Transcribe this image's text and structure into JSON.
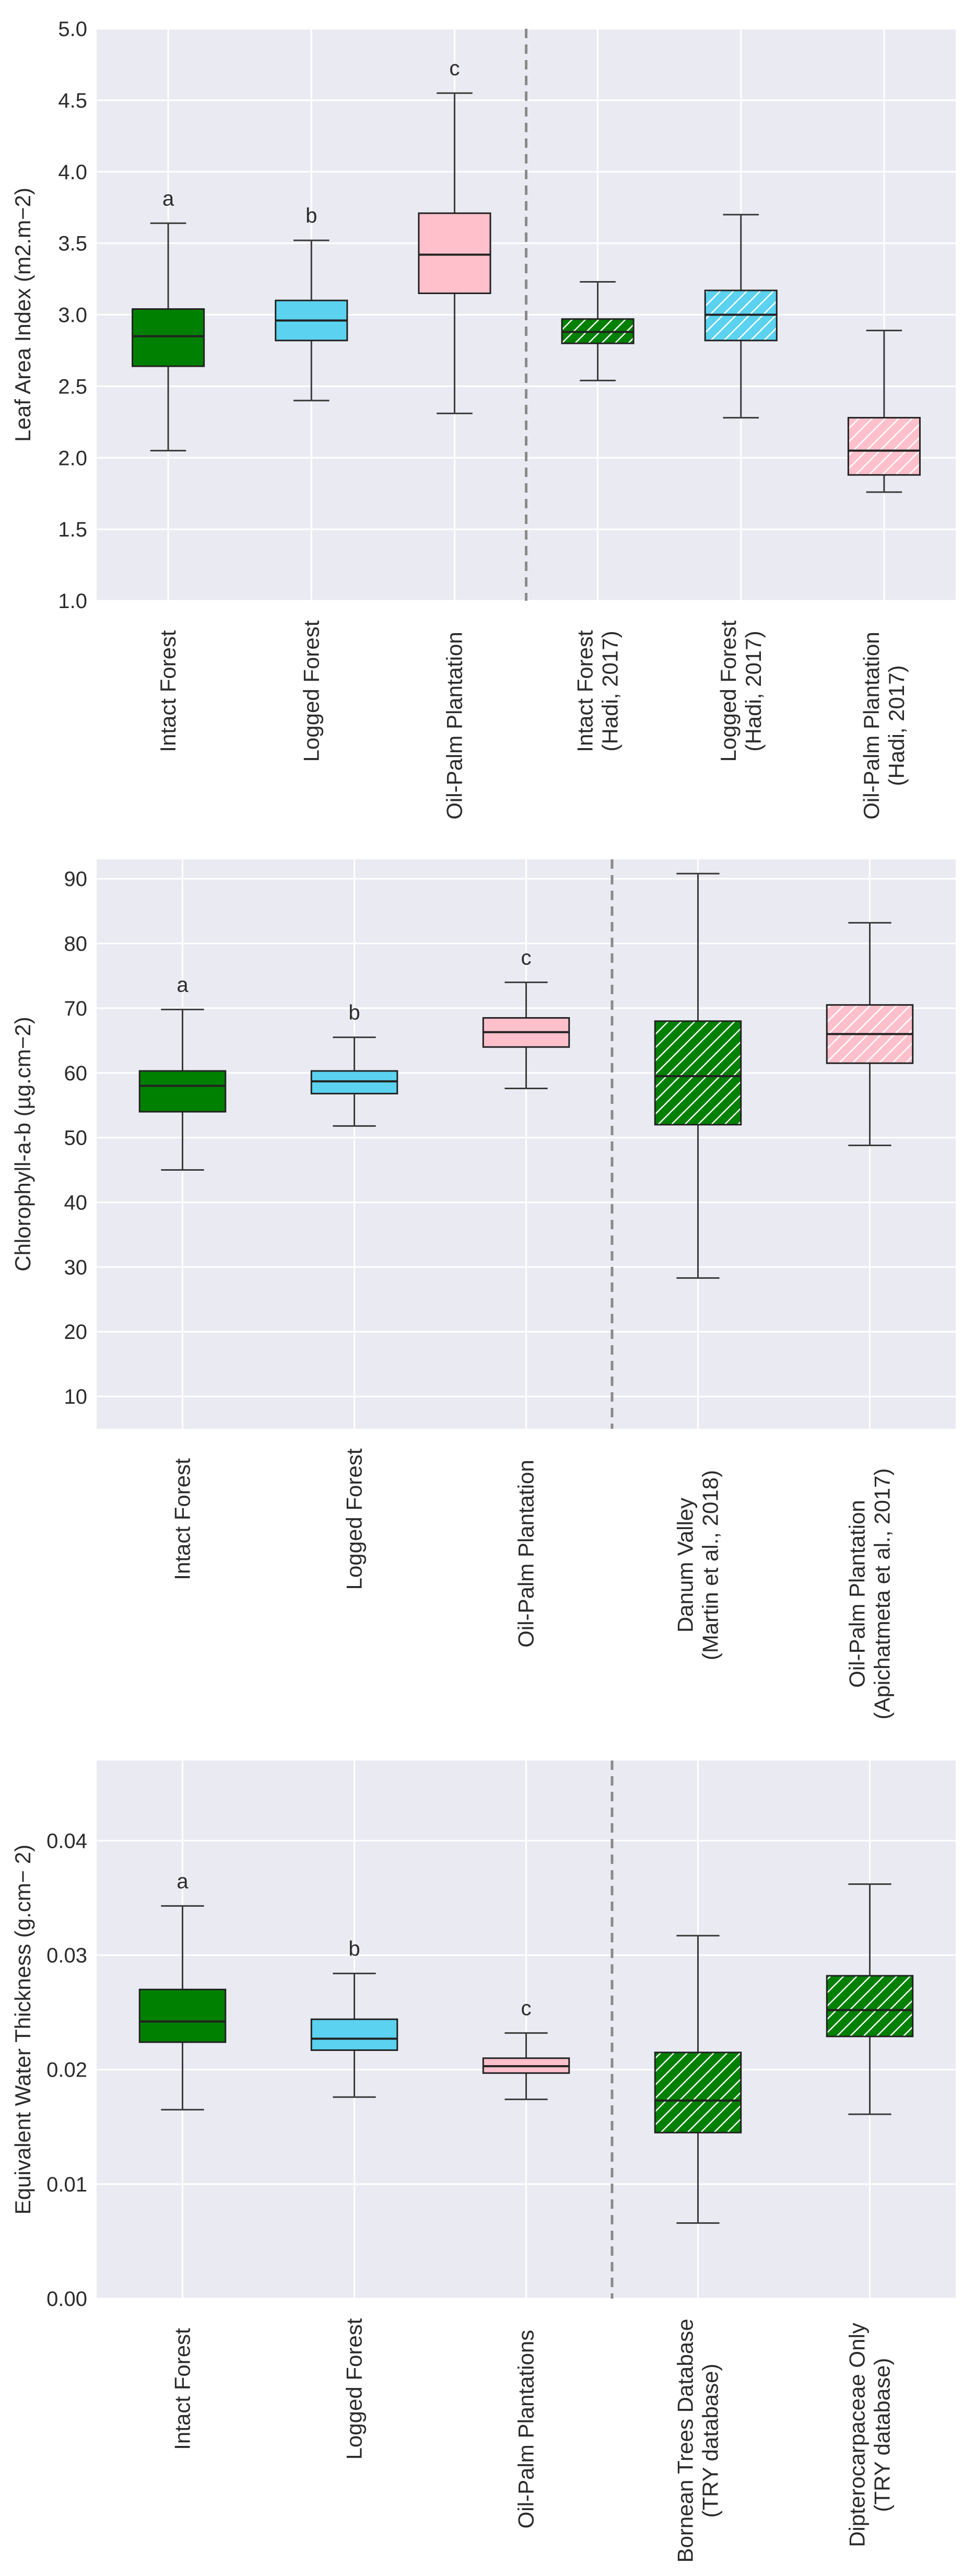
{
  "colors": {
    "panel_bg": "#eaeaf2",
    "grid": "#ffffff",
    "whisker": "#3a3a3a",
    "divider": "#8a8a8a",
    "intact": "#008000",
    "logged": "#5bd2f0",
    "oilpalm": "#ffc0cb"
  },
  "chart_data": [
    {
      "type": "box",
      "ylabel": "Leaf Area Index (m2.m−2)",
      "ylim": [
        1.0,
        5.0
      ],
      "yticks": [
        1.0,
        1.5,
        2.0,
        2.5,
        3.0,
        3.5,
        4.0,
        4.5,
        5.0
      ],
      "tick_decimals": 1,
      "divider_after": 3,
      "boxes": [
        {
          "label": "Intact Forest",
          "whisker_low": 2.05,
          "q1": 2.64,
          "median": 2.85,
          "q3": 3.04,
          "whisker_high": 3.64,
          "letter": "a",
          "color": "intact",
          "hatched": false
        },
        {
          "label": "Logged Forest",
          "whisker_low": 2.4,
          "q1": 2.82,
          "median": 2.96,
          "q3": 3.1,
          "whisker_high": 3.52,
          "letter": "b",
          "color": "logged",
          "hatched": false
        },
        {
          "label": "Oil-Palm Plantation",
          "whisker_low": 2.31,
          "q1": 3.15,
          "median": 3.42,
          "q3": 3.71,
          "whisker_high": 4.55,
          "letter": "c",
          "color": "oilpalm",
          "hatched": false
        },
        {
          "label": "Intact Forest\n(Hadi, 2017)",
          "whisker_low": 2.54,
          "q1": 2.8,
          "median": 2.88,
          "q3": 2.97,
          "whisker_high": 3.23,
          "letter": "",
          "color": "intact",
          "hatched": true
        },
        {
          "label": "Logged Forest\n(Hadi, 2017)",
          "whisker_low": 2.28,
          "q1": 2.82,
          "median": 3.0,
          "q3": 3.17,
          "whisker_high": 3.7,
          "letter": "",
          "color": "logged",
          "hatched": true
        },
        {
          "label": "Oil-Palm Plantation\n(Hadi, 2017)",
          "whisker_low": 1.76,
          "q1": 1.88,
          "median": 2.05,
          "q3": 2.28,
          "whisker_high": 2.89,
          "letter": "",
          "color": "oilpalm",
          "hatched": true
        }
      ]
    },
    {
      "type": "box",
      "ylabel": "Chlorophyll-a-b (µg.cm−2)",
      "ylim": [
        5,
        93
      ],
      "yticks": [
        10,
        20,
        30,
        40,
        50,
        60,
        70,
        80,
        90
      ],
      "tick_decimals": 0,
      "divider_after": 3,
      "boxes": [
        {
          "label": "Intact Forest",
          "whisker_low": 45.0,
          "q1": 54.0,
          "median": 58.0,
          "q3": 60.3,
          "whisker_high": 69.8,
          "letter": "a",
          "color": "intact",
          "hatched": false
        },
        {
          "label": "Logged Forest",
          "whisker_low": 51.8,
          "q1": 56.8,
          "median": 58.7,
          "q3": 60.3,
          "whisker_high": 65.5,
          "letter": "b",
          "color": "logged",
          "hatched": false
        },
        {
          "label": "Oil-Palm Plantation",
          "whisker_low": 57.6,
          "q1": 64.0,
          "median": 66.3,
          "q3": 68.5,
          "whisker_high": 74.0,
          "letter": "c",
          "color": "oilpalm",
          "hatched": false
        },
        {
          "label": "Danum Valley\n(Martin et al., 2018)",
          "whisker_low": 28.3,
          "q1": 52.0,
          "median": 59.5,
          "q3": 68.0,
          "whisker_high": 90.8,
          "letter": "",
          "color": "intact",
          "hatched": true
        },
        {
          "label": "Oil-Palm Plantation\n(Apichatmeta et al., 2017)",
          "whisker_low": 48.8,
          "q1": 61.5,
          "median": 66.0,
          "q3": 70.5,
          "whisker_high": 83.2,
          "letter": "",
          "color": "oilpalm",
          "hatched": true
        }
      ]
    },
    {
      "type": "box",
      "ylabel": "Equivalent Water Thickness (g.cm− 2)",
      "ylim": [
        0.0,
        0.047
      ],
      "yticks": [
        0.0,
        0.01,
        0.02,
        0.03,
        0.04
      ],
      "tick_decimals": 2,
      "divider_after": 3,
      "boxes": [
        {
          "label": "Intact Forest",
          "whisker_low": 0.0165,
          "q1": 0.0224,
          "median": 0.0242,
          "q3": 0.027,
          "whisker_high": 0.0343,
          "letter": "a",
          "color": "intact",
          "hatched": false
        },
        {
          "label": "Logged Forest",
          "whisker_low": 0.0176,
          "q1": 0.0217,
          "median": 0.0227,
          "q3": 0.0244,
          "whisker_high": 0.0284,
          "letter": "b",
          "color": "logged",
          "hatched": false
        },
        {
          "label": "Oil-Palm Plantations",
          "whisker_low": 0.0174,
          "q1": 0.0197,
          "median": 0.0203,
          "q3": 0.021,
          "whisker_high": 0.0232,
          "letter": "c",
          "color": "oilpalm",
          "hatched": false
        },
        {
          "label": "Bornean Trees Database\n(TRY database)",
          "whisker_low": 0.0066,
          "q1": 0.0145,
          "median": 0.0173,
          "q3": 0.0215,
          "whisker_high": 0.0317,
          "letter": "",
          "color": "intact",
          "hatched": true
        },
        {
          "label": "Dipterocarpaceae Only\n(TRY database)",
          "whisker_low": 0.0161,
          "q1": 0.0229,
          "median": 0.0252,
          "q3": 0.0282,
          "whisker_high": 0.0362,
          "letter": "",
          "color": "intact",
          "hatched": true
        }
      ]
    }
  ]
}
